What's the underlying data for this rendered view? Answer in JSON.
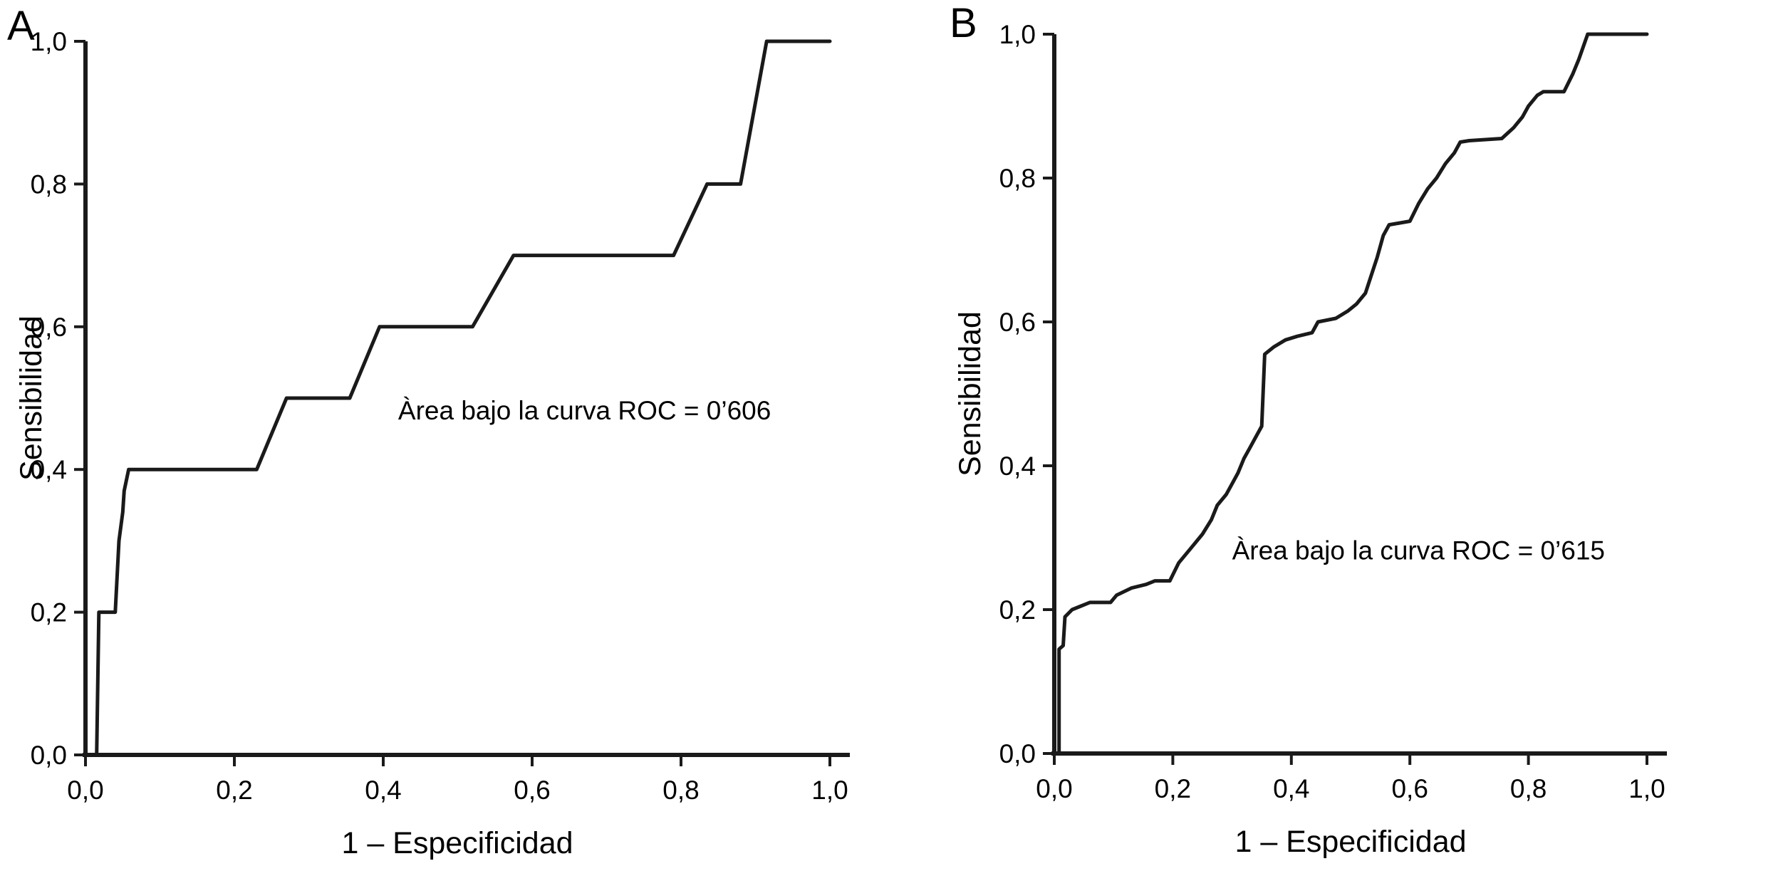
{
  "figure": {
    "background": "#ffffff",
    "curve_color": "#1a1a1a",
    "axis_color": "#1a1a1a",
    "text_color": "#000000"
  },
  "chart_data": [
    {
      "type": "line",
      "title": "A",
      "xlabel": "1 – Especificidad",
      "ylabel": "Sensibilidad",
      "xlim": [
        0,
        1
      ],
      "ylim": [
        0,
        1
      ],
      "grid": false,
      "legend": "none",
      "xtick_values": [
        0,
        0.2,
        0.4,
        0.6,
        0.8,
        1.0
      ],
      "xtick_labels": [
        "0,0",
        "0,2",
        "0,4",
        "0,6",
        "0,8",
        "1,0"
      ],
      "ytick_values": [
        0,
        0.2,
        0.4,
        0.6,
        0.8,
        1.0
      ],
      "ytick_labels": [
        "0,0",
        "0,2",
        "0,4",
        "0,6",
        "0,8",
        "1,0"
      ],
      "annotation": {
        "text": "Àrea bajo la curva ROC = 0’606",
        "x": 0.42,
        "y": 0.47
      },
      "series": [
        {
          "name": "ROC",
          "points": [
            [
              0,
              0
            ],
            [
              0.015,
              0
            ],
            [
              0.018,
              0.2
            ],
            [
              0.04,
              0.2
            ],
            [
              0.045,
              0.3
            ],
            [
              0.05,
              0.34
            ],
            [
              0.052,
              0.37
            ],
            [
              0.058,
              0.4
            ],
            [
              0.23,
              0.4
            ],
            [
              0.27,
              0.5
            ],
            [
              0.355,
              0.5
            ],
            [
              0.395,
              0.6
            ],
            [
              0.52,
              0.6
            ],
            [
              0.575,
              0.7
            ],
            [
              0.79,
              0.7
            ],
            [
              0.835,
              0.8
            ],
            [
              0.88,
              0.8
            ],
            [
              0.915,
              1.0
            ],
            [
              1,
              1
            ]
          ]
        }
      ]
    },
    {
      "type": "line",
      "title": "B",
      "xlabel": "1 – Especificidad",
      "ylabel": "Sensibilidad",
      "xlim": [
        0,
        1
      ],
      "ylim": [
        0,
        1
      ],
      "grid": false,
      "legend": "none",
      "xtick_values": [
        0,
        0.2,
        0.4,
        0.6,
        0.8,
        1.0
      ],
      "xtick_labels": [
        "0,0",
        "0,2",
        "0,4",
        "0,6",
        "0,8",
        "1,0"
      ],
      "ytick_values": [
        0,
        0.2,
        0.4,
        0.6,
        0.8,
        1.0
      ],
      "ytick_labels": [
        "0,0",
        "0,2",
        "0,4",
        "0,6",
        "0,8",
        "1,0"
      ],
      "annotation": {
        "text": "Àrea bajo la curva ROC = 0’615",
        "x": 0.3,
        "y": 0.27
      },
      "series": [
        {
          "name": "ROC",
          "points": [
            [
              0,
              0
            ],
            [
              0.008,
              0
            ],
            [
              0.008,
              0.145
            ],
            [
              0.015,
              0.15
            ],
            [
              0.018,
              0.19
            ],
            [
              0.03,
              0.2
            ],
            [
              0.045,
              0.205
            ],
            [
              0.06,
              0.21
            ],
            [
              0.095,
              0.21
            ],
            [
              0.105,
              0.22
            ],
            [
              0.13,
              0.23
            ],
            [
              0.155,
              0.235
            ],
            [
              0.17,
              0.24
            ],
            [
              0.195,
              0.24
            ],
            [
              0.21,
              0.265
            ],
            [
              0.23,
              0.285
            ],
            [
              0.25,
              0.305
            ],
            [
              0.265,
              0.325
            ],
            [
              0.275,
              0.345
            ],
            [
              0.29,
              0.36
            ],
            [
              0.3,
              0.375
            ],
            [
              0.31,
              0.39
            ],
            [
              0.32,
              0.41
            ],
            [
              0.33,
              0.425
            ],
            [
              0.34,
              0.44
            ],
            [
              0.35,
              0.455
            ],
            [
              0.355,
              0.555
            ],
            [
              0.37,
              0.565
            ],
            [
              0.39,
              0.575
            ],
            [
              0.41,
              0.58
            ],
            [
              0.435,
              0.585
            ],
            [
              0.445,
              0.6
            ],
            [
              0.475,
              0.605
            ],
            [
              0.495,
              0.615
            ],
            [
              0.51,
              0.625
            ],
            [
              0.525,
              0.64
            ],
            [
              0.535,
              0.665
            ],
            [
              0.545,
              0.69
            ],
            [
              0.555,
              0.72
            ],
            [
              0.565,
              0.735
            ],
            [
              0.6,
              0.74
            ],
            [
              0.615,
              0.765
            ],
            [
              0.63,
              0.785
            ],
            [
              0.645,
              0.8
            ],
            [
              0.66,
              0.82
            ],
            [
              0.675,
              0.835
            ],
            [
              0.685,
              0.85
            ],
            [
              0.7,
              0.852
            ],
            [
              0.755,
              0.855
            ],
            [
              0.775,
              0.87
            ],
            [
              0.79,
              0.885
            ],
            [
              0.8,
              0.9
            ],
            [
              0.815,
              0.915
            ],
            [
              0.825,
              0.92
            ],
            [
              0.86,
              0.92
            ],
            [
              0.875,
              0.945
            ],
            [
              0.885,
              0.965
            ],
            [
              0.9,
              1.0
            ],
            [
              1,
              1
            ]
          ]
        }
      ]
    }
  ]
}
